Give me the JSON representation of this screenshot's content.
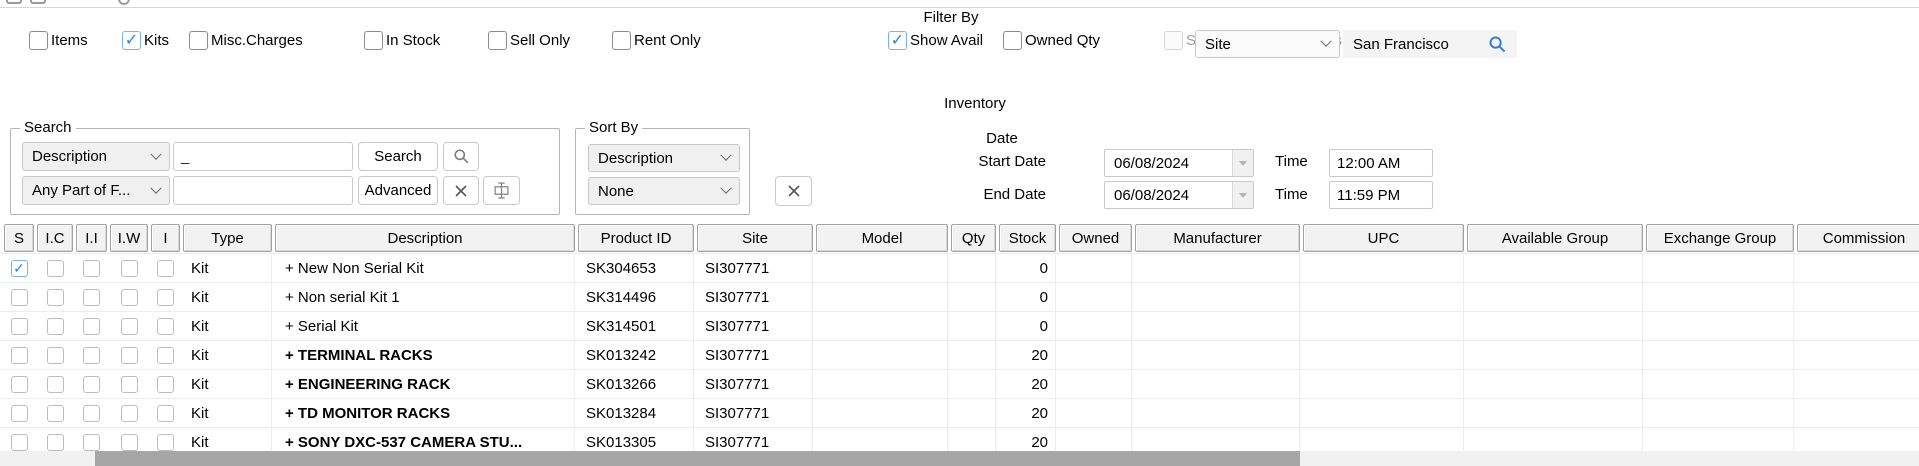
{
  "filter_bar": {
    "title": "Filter By",
    "checkboxes": [
      {
        "label": "Items",
        "checked": false,
        "disabled": false
      },
      {
        "label": "Kits",
        "checked": true,
        "disabled": false
      },
      {
        "label": "Misc.Charges",
        "checked": false,
        "disabled": false
      },
      {
        "label": "In Stock",
        "checked": false,
        "disabled": false
      },
      {
        "label": "Sell Only",
        "checked": false,
        "disabled": false
      },
      {
        "label": "Rent Only",
        "checked": false,
        "disabled": false
      },
      {
        "label": "Show Avail",
        "checked": true,
        "disabled": false
      },
      {
        "label": "Owned Qty",
        "checked": false,
        "disabled": false
      },
      {
        "label": "Search in all languages",
        "checked": false,
        "disabled": true
      }
    ],
    "site_dropdown_value": "Site",
    "site_value": "San Francisco"
  },
  "inventory": {
    "title": "Inventory",
    "date_label": "Date",
    "start_date_label": "Start Date",
    "start_date": "06/08/2024",
    "start_time_label": "Time",
    "start_time": "12:00 AM",
    "end_date_label": "End Date",
    "end_date": "06/08/2024",
    "end_time_label": "Time",
    "end_time": "11:59 PM"
  },
  "search_group": {
    "legend": "Search",
    "field_dropdown_value": "Description",
    "search_input_value": "",
    "search_input_caret": "_",
    "search_button": "Search",
    "match_dropdown_value": "Any Part of F...",
    "value_input_value": "",
    "advanced_button": "Advanced"
  },
  "sort_group": {
    "legend": "Sort By",
    "primary_value": "Description",
    "secondary_value": "None"
  },
  "table": {
    "columns": [
      "S",
      "I.C",
      "I.I",
      "I.W",
      "I",
      "Type",
      "Description",
      "Product ID",
      "Site",
      "Model",
      "Qty",
      "Stock",
      "Owned",
      "Manufacturer",
      "UPC",
      "Available Group",
      "Exchange Group",
      "Commission"
    ],
    "rows": [
      {
        "selected": true,
        "type": "Kit",
        "description": "+ New Non Serial Kit",
        "bold": false,
        "product_id": "SK304653",
        "site": "SI307771",
        "model": "",
        "qty": "",
        "stock": "0",
        "owned": "",
        "manufacturer": "",
        "upc": "",
        "available_group": "",
        "exchange_group": "",
        "commission": ""
      },
      {
        "selected": false,
        "type": "Kit",
        "description": "+ Non serial Kit 1",
        "bold": false,
        "product_id": "SK314496",
        "site": "SI307771",
        "model": "",
        "qty": "",
        "stock": "0",
        "owned": "",
        "manufacturer": "",
        "upc": "",
        "available_group": "",
        "exchange_group": "",
        "commission": ""
      },
      {
        "selected": false,
        "type": "Kit",
        "description": "+ Serial Kit",
        "bold": false,
        "product_id": "SK314501",
        "site": "SI307771",
        "model": "",
        "qty": "",
        "stock": "0",
        "owned": "",
        "manufacturer": "",
        "upc": "",
        "available_group": "",
        "exchange_group": "",
        "commission": ""
      },
      {
        "selected": false,
        "type": "Kit",
        "description": "+ TERMINAL RACKS",
        "bold": true,
        "product_id": "SK013242",
        "site": "SI307771",
        "model": "",
        "qty": "",
        "stock": "20",
        "owned": "",
        "manufacturer": "",
        "upc": "",
        "available_group": "",
        "exchange_group": "",
        "commission": ""
      },
      {
        "selected": false,
        "type": "Kit",
        "description": "+ ENGINEERING RACK",
        "bold": true,
        "product_id": "SK013266",
        "site": "SI307771",
        "model": "",
        "qty": "",
        "stock": "20",
        "owned": "",
        "manufacturer": "",
        "upc": "",
        "available_group": "",
        "exchange_group": "",
        "commission": ""
      },
      {
        "selected": false,
        "type": "Kit",
        "description": "+ TD MONITOR RACKS",
        "bold": true,
        "product_id": "SK013284",
        "site": "SI307771",
        "model": "",
        "qty": "",
        "stock": "20",
        "owned": "",
        "manufacturer": "",
        "upc": "",
        "available_group": "",
        "exchange_group": "",
        "commission": ""
      },
      {
        "selected": false,
        "type": "Kit",
        "description": "+ SONY DXC-537 CAMERA STU...",
        "bold": true,
        "product_id": "SK013305",
        "site": "SI307771",
        "model": "",
        "qty": "",
        "stock": "20",
        "owned": "",
        "manufacturer": "",
        "upc": "",
        "available_group": "",
        "exchange_group": "",
        "commission": ""
      }
    ]
  },
  "colors": {
    "accent_blue": "#2f80d6",
    "checked_border": "#7cb3e5",
    "site_search_icon": "#2e7cd6",
    "disabled_text": "#9d9d9d",
    "header_bg": "#f2f2f2",
    "grid_line": "#ededed",
    "scrollbar_thumb": "#a6a6a6"
  }
}
